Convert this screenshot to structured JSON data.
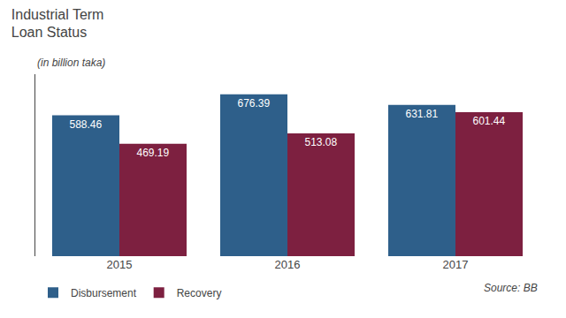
{
  "chart_data": {
    "type": "bar",
    "title": "Industrial Term\nLoan Status",
    "subtitle": "(in billion taka)",
    "categories": [
      "2015",
      "2016",
      "2017"
    ],
    "series": [
      {
        "name": "Disbursement",
        "color": "#2E5F8A",
        "values": [
          588.46,
          676.39,
          631.81
        ]
      },
      {
        "name": "Recovery",
        "color": "#7D2040",
        "values": [
          469.19,
          513.08,
          601.44
        ]
      }
    ],
    "ylim": [
      0,
      760
    ],
    "data_labels": true,
    "tick_labels": "x",
    "grid": false,
    "legend": "lower left",
    "annotations": [
      "Source: BB"
    ]
  }
}
